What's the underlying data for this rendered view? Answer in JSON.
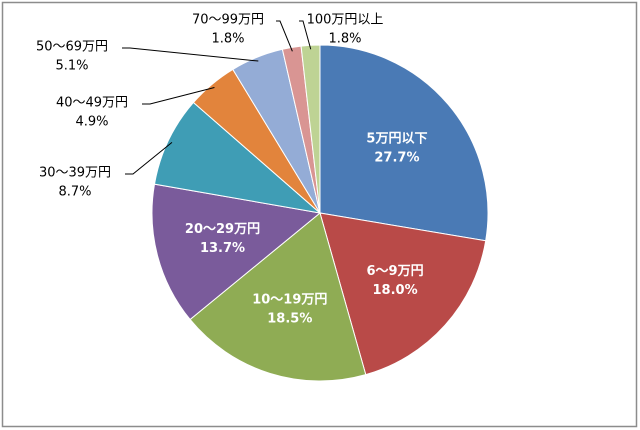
{
  "chart_data": {
    "type": "pie",
    "categories": [
      "5万円以下",
      "6～9万円",
      "10～19万円",
      "20～29万円",
      "30～39万円",
      "40～49万円",
      "50～69万円",
      "70～99万円",
      "100万円以上"
    ],
    "values": [
      27.7,
      18.0,
      18.5,
      13.7,
      8.7,
      4.9,
      5.1,
      1.8,
      1.8
    ],
    "value_labels": [
      "27.7%",
      "18.0%",
      "18.5%",
      "13.7%",
      "8.7%",
      "4.9%",
      "5.1%",
      "1.8%",
      "1.8%"
    ],
    "colors": [
      "#4a7ab5",
      "#b94a48",
      "#8fac54",
      "#7a5b9b",
      "#3f9db5",
      "#e2843c",
      "#94acd6",
      "#d99593",
      "#bed394"
    ]
  }
}
